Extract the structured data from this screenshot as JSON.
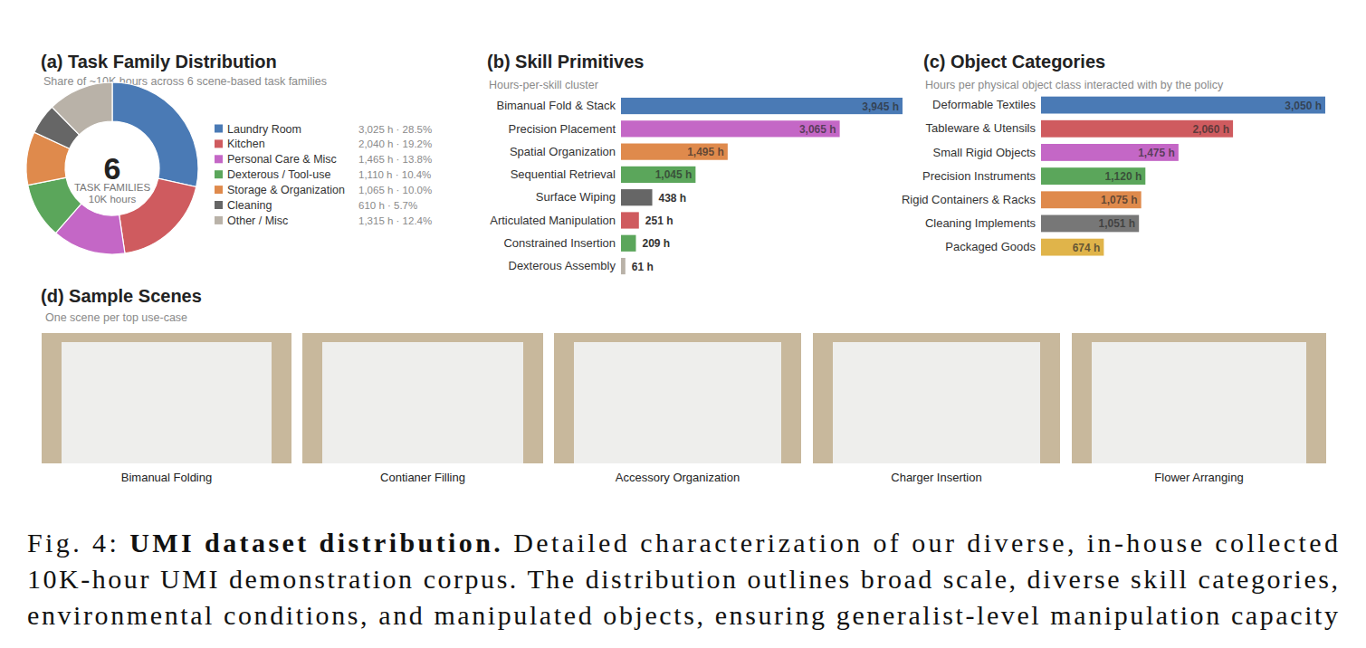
{
  "chart_data": [
    {
      "type": "pie",
      "title": "(a) Task Family Distribution",
      "subtitle": "Share of ~10K hours across 6 scene-based task families",
      "annotations": [
        "6",
        "TASK FAMILIES",
        "10K hours"
      ],
      "categories": [
        "Laundry Room",
        "Kitchen",
        "Personal Care & Misc",
        "Dexterous / Tool-use",
        "Storage & Organization",
        "Cleaning",
        "Other / Misc"
      ],
      "values": [
        3025,
        2040,
        1465,
        1110,
        1065,
        610,
        1315
      ],
      "value_labels": [
        "3,025 h · 28.5%",
        "2,040 h · 19.2%",
        "1,465 h · 13.8%",
        "1,110 h · 10.4%",
        "1,065 h · 10.0%",
        "610 h · 5.7%",
        "1,315 h · 12.4%"
      ],
      "colors": [
        "#4a7ab5",
        "#cf5b5f",
        "#c467c6",
        "#5ba65b",
        "#df8a4c",
        "#666666",
        "#b9b2a8"
      ],
      "legend": "right"
    },
    {
      "type": "bar",
      "orientation": "horizontal",
      "title": "(b) Skill Primitives",
      "subtitle": "Hours-per-skill cluster",
      "categories": [
        "Bimanual Fold & Stack",
        "Precision Placement",
        "Spatial Organization",
        "Sequential Retrieval",
        "Surface Wiping",
        "Articulated Manipulation",
        "Constrained Insertion",
        "Dexterous Assembly"
      ],
      "values": [
        3945,
        3065,
        1495,
        1045,
        438,
        251,
        209,
        61
      ],
      "value_labels": [
        "3,945 h",
        "3,065 h",
        "1,495 h",
        "1,045 h",
        "438 h",
        "251 h",
        "209 h",
        "61 h"
      ],
      "data_labels": true,
      "colors": [
        "#4a7ab5",
        "#c467c6",
        "#df8a4c",
        "#5ba65b",
        "#666666",
        "#cf5b5f",
        "#5ba65b",
        "#b9b2a8"
      ],
      "xlim": [
        0,
        3945
      ],
      "tick_labels": "y",
      "grid": false
    },
    {
      "type": "bar",
      "orientation": "horizontal",
      "title": "(c) Object Categories",
      "subtitle": "Hours per physical object class interacted with by the policy",
      "categories": [
        "Deformable Textiles",
        "Tableware & Utensils",
        "Small Rigid Objects",
        "Precision Instruments",
        "Rigid Containers & Racks",
        "Cleaning Implements",
        "Packaged Goods"
      ],
      "values": [
        3050,
        2060,
        1475,
        1120,
        1075,
        1051,
        674
      ],
      "value_labels": [
        "3,050 h",
        "2,060 h",
        "1,475 h",
        "1,120 h",
        "1,075 h",
        "1,051 h",
        "674 h"
      ],
      "data_labels": true,
      "colors": [
        "#4a7ab5",
        "#cf5b5f",
        "#c467c6",
        "#5ba65b",
        "#df8a4c",
        "#777777",
        "#e0b44a"
      ],
      "xlim": [
        0,
        3050
      ],
      "tick_labels": "y",
      "grid": false
    }
  ],
  "sample_scenes": {
    "title": "(d) Sample Scenes",
    "subtitle": "One scene per top use-case",
    "captions": [
      "Bimanual Folding",
      "Contianer Filling",
      "Accessory Organization",
      "Charger Insertion",
      "Flower Arranging"
    ]
  },
  "caption": {
    "label": "Fig. 4:",
    "title": "UMI dataset distribution.",
    "lines": [
      "Detailed characterization of our diverse, in-house collected",
      "10K-hour UMI demonstration corpus. The distribution outlines broad scale, diverse skill categories,",
      "environmental conditions, and manipulated objects, ensuring generalist-level manipulation capacity"
    ]
  }
}
